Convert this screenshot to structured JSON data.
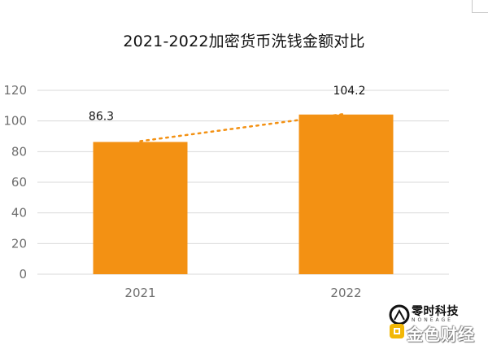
{
  "colors": {
    "bar": "#F39113",
    "trendline": "#F39113",
    "grid": "#D9D9D9",
    "axis_text": "#6F6F6F"
  },
  "chart_data": {
    "type": "bar",
    "title": "2021-2022加密货币洗钱金额对比",
    "categories": [
      "2021",
      "2022"
    ],
    "values": [
      86.3,
      104.2
    ],
    "data_labels": [
      "86.3",
      "104.2"
    ],
    "ylim": [
      0,
      120
    ],
    "yticks": [
      0,
      20,
      40,
      60,
      80,
      100,
      120
    ],
    "grid": true,
    "trendline": "linear dotted",
    "xlabel": "",
    "ylabel": ""
  },
  "watermark": {
    "brand_top": "零时科技",
    "brand_sub": "NONEAGE",
    "brand_bottom": "金色财经"
  }
}
